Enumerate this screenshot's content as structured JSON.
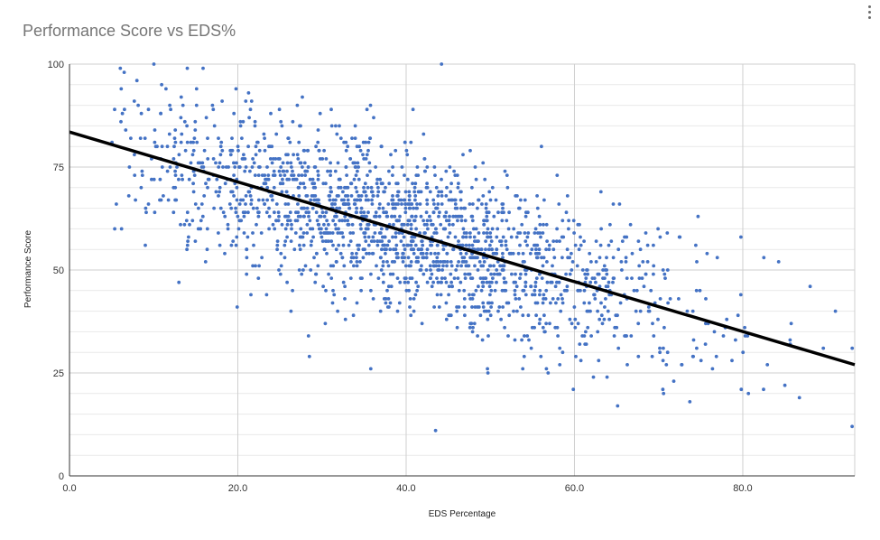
{
  "menu": {
    "icon": "more-vert-icon"
  },
  "chart_data": {
    "type": "scatter",
    "title": "Performance Score vs EDS%",
    "xlabel": "EDS Percentage",
    "ylabel": "Performance Score",
    "xlim": [
      0,
      93.3
    ],
    "ylim": [
      0,
      100
    ],
    "x_ticks": [
      "0.0",
      "20.0",
      "40.0",
      "60.0",
      "80.0"
    ],
    "y_ticks": [
      "0",
      "25",
      "50",
      "75",
      "100"
    ],
    "grid": true,
    "point_color": "#4472c4",
    "trendline": {
      "x": [
        0,
        93.3
      ],
      "y": [
        83.5,
        27
      ],
      "color": "#000000"
    },
    "cluster_model": {
      "count": 1900,
      "x_mean": 40,
      "x_sd": 17,
      "x_range": [
        5,
        93
      ],
      "intercept": 83.5,
      "slope": -0.6056,
      "residual_sd": 10,
      "y_range": [
        11,
        100
      ],
      "seed": 7
    },
    "notable_points": [
      {
        "x": 43.5,
        "y": 11
      },
      {
        "x": 28.5,
        "y": 29
      },
      {
        "x": 35.8,
        "y": 26
      },
      {
        "x": 44.2,
        "y": 100
      },
      {
        "x": 93.0,
        "y": 31
      },
      {
        "x": 70.5,
        "y": 21
      },
      {
        "x": 6.5,
        "y": 98
      },
      {
        "x": 14.0,
        "y": 99
      },
      {
        "x": 88.0,
        "y": 46
      },
      {
        "x": 91.0,
        "y": 40
      },
      {
        "x": 85.0,
        "y": 22
      },
      {
        "x": 82.5,
        "y": 53
      },
      {
        "x": 13.0,
        "y": 47
      }
    ]
  }
}
